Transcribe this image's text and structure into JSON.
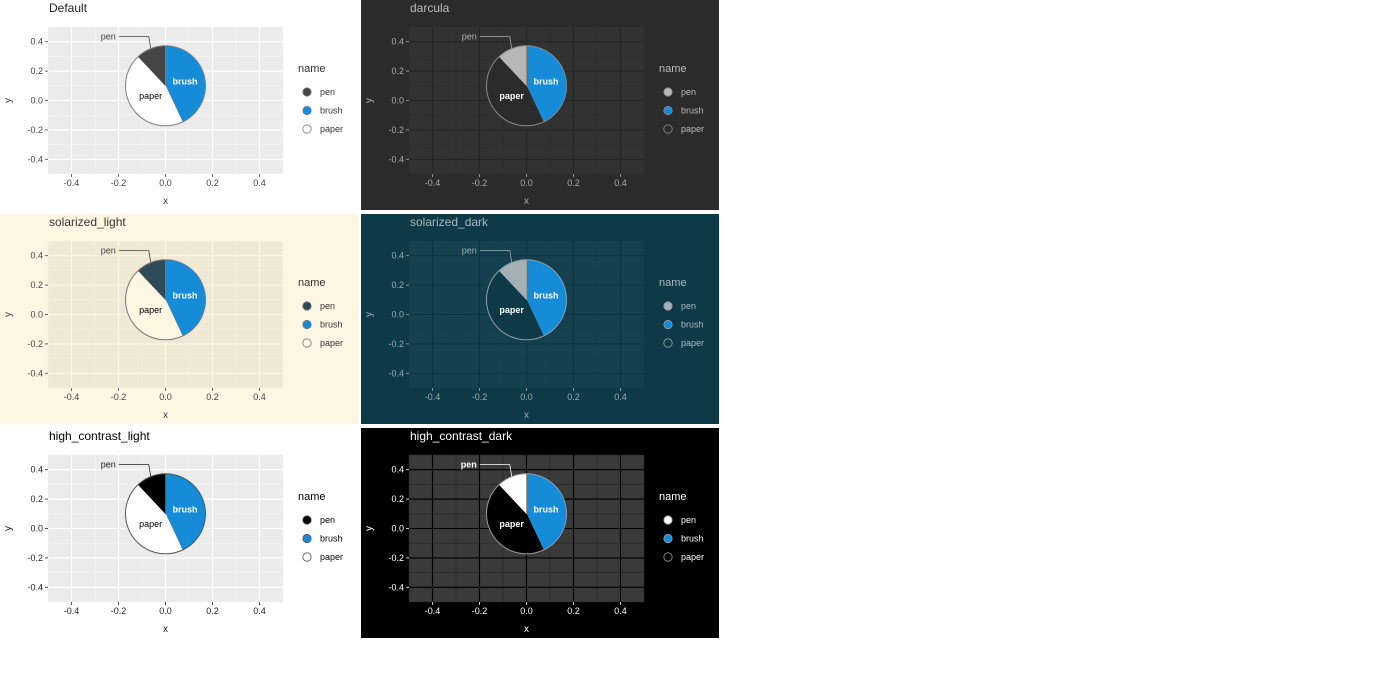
{
  "chart_data": [
    {
      "type": "pie",
      "title": "Default",
      "theme": {
        "panel_bg": "#ffffff",
        "plot_bg": "#ebebeb",
        "grid_major": "#ffffff",
        "grid_minor": "#f5f5f5",
        "text": "#444444",
        "title": "#222222",
        "label": "#000000",
        "outline": "#7f7f7f",
        "pen": "#454545",
        "brush": "#168bd7",
        "paper": "#ffffff",
        "legend_text": "#333333"
      },
      "xlabel": "x",
      "ylabel": "y",
      "xlim": [
        -0.5,
        0.5
      ],
      "ylim": [
        -0.5,
        0.5
      ],
      "x_ticks": [
        "-0.4",
        "-0.2",
        "0.0",
        "0.2",
        "0.4"
      ],
      "y_ticks": [
        "0.4",
        "0.2",
        "0.0",
        "-0.2",
        "-0.4"
      ],
      "legend_title": "name",
      "legend_placement": "right",
      "slices": [
        {
          "name": "pen",
          "value": 0.12
        },
        {
          "name": "brush",
          "value": 0.43
        },
        {
          "name": "paper",
          "value": 0.45
        }
      ]
    },
    {
      "type": "pie",
      "title": "darcula",
      "theme": {
        "panel_bg": "#2b2b2b",
        "plot_bg": "#323232",
        "grid_major": "#262626",
        "grid_minor": "#2e2e2e",
        "text": "#aaaaaa",
        "title": "#bbbbbb",
        "label": "#ffffff",
        "outline": "#888888",
        "pen": "#b7b7b7",
        "brush": "#168bd7",
        "paper": "#2b2b2b",
        "legend_text": "#bbbbbb"
      },
      "xlabel": "x",
      "ylabel": "y",
      "xlim": [
        -0.5,
        0.5
      ],
      "ylim": [
        -0.5,
        0.5
      ],
      "x_ticks": [
        "-0.4",
        "-0.2",
        "0.0",
        "0.2",
        "0.4"
      ],
      "y_ticks": [
        "0.4",
        "0.2",
        "0.0",
        "-0.2",
        "-0.4"
      ],
      "legend_title": "name",
      "legend_placement": "right",
      "slices": [
        {
          "name": "pen",
          "value": 0.12
        },
        {
          "name": "brush",
          "value": 0.43
        },
        {
          "name": "paper",
          "value": 0.45
        }
      ]
    },
    {
      "type": "pie",
      "title": "solarized_light",
      "theme": {
        "panel_bg": "#fdf6e3",
        "plot_bg": "#eee8d5",
        "grid_major": "#fdf6e3",
        "grid_minor": "#f5efdc",
        "text": "#444444",
        "title": "#333333",
        "label": "#000000",
        "outline": "#777777",
        "pen": "#2f4b59",
        "brush": "#168bd7",
        "paper": "#fdf6e3",
        "legend_text": "#333333"
      },
      "xlabel": "x",
      "ylabel": "y",
      "xlim": [
        -0.5,
        0.5
      ],
      "ylim": [
        -0.5,
        0.5
      ],
      "x_ticks": [
        "-0.4",
        "-0.2",
        "0.0",
        "0.2",
        "0.4"
      ],
      "y_ticks": [
        "0.4",
        "0.2",
        "0.0",
        "-0.2",
        "-0.4"
      ],
      "legend_title": "name",
      "legend_placement": "right",
      "slices": [
        {
          "name": "pen",
          "value": 0.12
        },
        {
          "name": "brush",
          "value": 0.43
        },
        {
          "name": "paper",
          "value": 0.45
        }
      ]
    },
    {
      "type": "pie",
      "title": "solarized_dark",
      "theme": {
        "panel_bg": "#0e3a48",
        "plot_bg": "#15414f",
        "grid_major": "#0b3542",
        "grid_minor": "#123d4b",
        "text": "#9aaab0",
        "title": "#a8b8bc",
        "label": "#ffffff",
        "outline": "#8f9ea3",
        "pen": "#a4b0b3",
        "brush": "#168bd7",
        "paper": "#0e3a48",
        "legend_text": "#a8b8bc"
      },
      "xlabel": "x",
      "ylabel": "y",
      "xlim": [
        -0.5,
        0.5
      ],
      "ylim": [
        -0.5,
        0.5
      ],
      "x_ticks": [
        "-0.4",
        "-0.2",
        "0.0",
        "0.2",
        "0.4"
      ],
      "y_ticks": [
        "0.4",
        "0.2",
        "0.0",
        "-0.2",
        "-0.4"
      ],
      "legend_title": "name",
      "legend_placement": "right",
      "slices": [
        {
          "name": "pen",
          "value": 0.12
        },
        {
          "name": "brush",
          "value": 0.43
        },
        {
          "name": "paper",
          "value": 0.45
        }
      ]
    },
    {
      "type": "pie",
      "title": "high_contrast_light",
      "theme": {
        "panel_bg": "#ffffff",
        "plot_bg": "#ebebeb",
        "grid_major": "#ffffff",
        "grid_minor": "#f5f5f5",
        "text": "#222222",
        "title": "#000000",
        "label": "#000000",
        "outline": "#555555",
        "pen": "#000000",
        "brush": "#168bd7",
        "paper": "#ffffff",
        "legend_text": "#000000"
      },
      "xlabel": "x",
      "ylabel": "y",
      "xlim": [
        -0.5,
        0.5
      ],
      "ylim": [
        -0.5,
        0.5
      ],
      "x_ticks": [
        "-0.4",
        "-0.2",
        "0.0",
        "0.2",
        "0.4"
      ],
      "y_ticks": [
        "0.4",
        "0.2",
        "0.0",
        "-0.2",
        "-0.4"
      ],
      "legend_title": "name",
      "legend_placement": "right",
      "slices": [
        {
          "name": "pen",
          "value": 0.12
        },
        {
          "name": "brush",
          "value": 0.43
        },
        {
          "name": "paper",
          "value": 0.45
        }
      ]
    },
    {
      "type": "pie",
      "title": "high_contrast_dark",
      "theme": {
        "panel_bg": "#000000",
        "plot_bg": "#3a3a3a",
        "grid_major": "#000000",
        "grid_minor": "#262626",
        "text": "#ffffff",
        "title": "#ffffff",
        "label": "#ffffff",
        "outline": "#999999",
        "pen": "#ffffff",
        "brush": "#168bd7",
        "paper": "#000000",
        "legend_text": "#ffffff"
      },
      "xlabel": "x",
      "ylabel": "y",
      "xlim": [
        -0.5,
        0.5
      ],
      "ylim": [
        -0.5,
        0.5
      ],
      "x_ticks": [
        "-0.4",
        "-0.2",
        "0.0",
        "0.2",
        "0.4"
      ],
      "y_ticks": [
        "0.4",
        "0.2",
        "0.0",
        "-0.2",
        "-0.4"
      ],
      "legend_title": "name",
      "legend_placement": "right",
      "slices": [
        {
          "name": "pen",
          "value": 0.12
        },
        {
          "name": "brush",
          "value": 0.43
        },
        {
          "name": "paper",
          "value": 0.45
        }
      ]
    }
  ]
}
